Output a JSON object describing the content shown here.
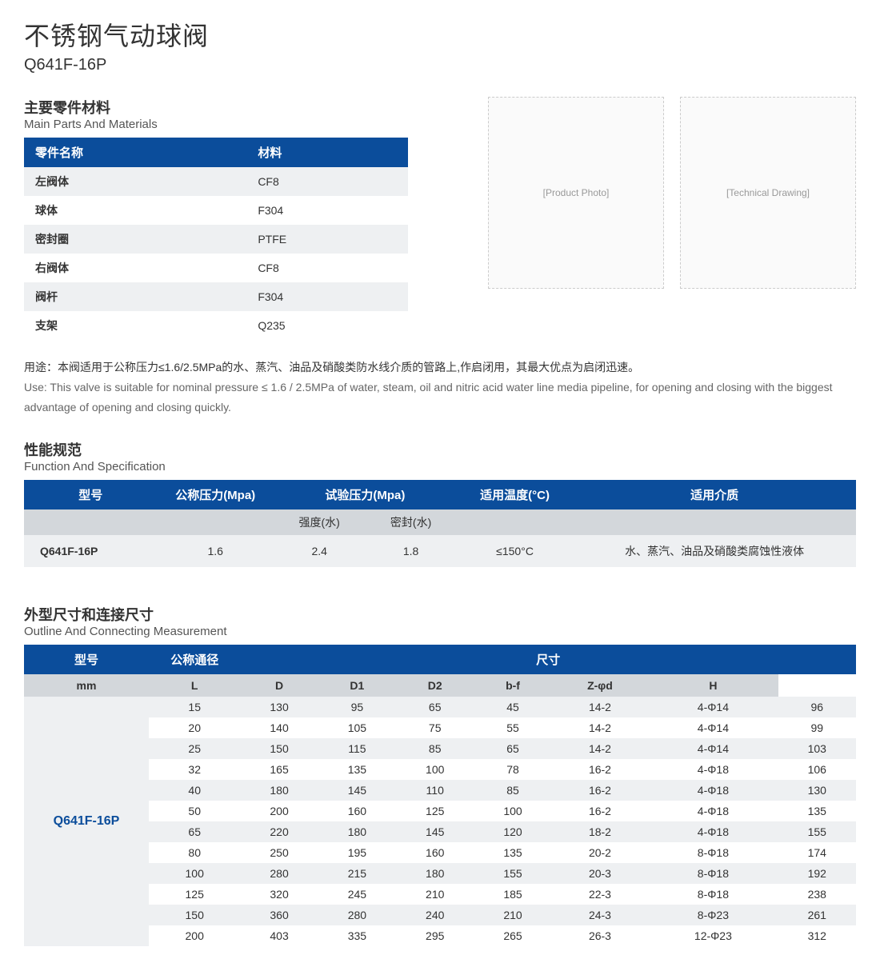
{
  "header": {
    "title_cn": "不锈钢气动球阀",
    "model": "Q641F-16P"
  },
  "materials": {
    "heading_cn": "主要零件材料",
    "heading_en": "Main Parts And Materials",
    "columns": [
      "零件名称",
      "材料"
    ],
    "rows": [
      [
        "左阀体",
        "CF8"
      ],
      [
        "球体",
        "F304"
      ],
      [
        "密封圈",
        "PTFE"
      ],
      [
        "右阀体",
        "CF8"
      ],
      [
        "阀杆",
        "F304"
      ],
      [
        "支架",
        "Q235"
      ]
    ]
  },
  "images": {
    "photo_label": "[Product Photo]",
    "diagram_label": "[Technical Drawing]"
  },
  "use": {
    "cn": "用途：本阀适用于公称压力≤1.6/2.5MPa的水、蒸汽、油品及硝酸类防水线介质的管路上,作启闭用，其最大优点为启闭迅速。",
    "en": "Use: This valve is suitable for nominal pressure ≤ 1.6 / 2.5MPa of water, steam, oil and nitric acid water line media pipeline, for opening and closing with the biggest advantage of opening and closing quickly."
  },
  "spec": {
    "heading_cn": "性能规范",
    "heading_en": "Function And Specification",
    "headers": [
      "型号",
      "公称压力(Mpa)",
      "试验压力(Mpa)",
      "适用温度(°C)",
      "适用介质"
    ],
    "sub": [
      "",
      "",
      "强度(水)",
      "密封(水)",
      "",
      ""
    ],
    "row": [
      "Q641F-16P",
      "1.6",
      "2.4",
      "1.8",
      "≤150°C",
      "水、蒸汽、油品及硝酸类腐蚀性液体"
    ]
  },
  "dimensions": {
    "heading_cn": "外型尺寸和连接尺寸",
    "heading_en": "Outline And Connecting Measurement",
    "top_headers": [
      "型号",
      "公称通径",
      "尺寸"
    ],
    "sub_headers": [
      "mm",
      "L",
      "D",
      "D1",
      "D2",
      "b-f",
      "Z-φd",
      "H"
    ],
    "model": "Q641F-16P",
    "rows": [
      [
        "15",
        "130",
        "95",
        "65",
        "45",
        "14-2",
        "4-Φ14",
        "96"
      ],
      [
        "20",
        "140",
        "105",
        "75",
        "55",
        "14-2",
        "4-Φ14",
        "99"
      ],
      [
        "25",
        "150",
        "115",
        "85",
        "65",
        "14-2",
        "4-Φ14",
        "103"
      ],
      [
        "32",
        "165",
        "135",
        "100",
        "78",
        "16-2",
        "4-Φ18",
        "106"
      ],
      [
        "40",
        "180",
        "145",
        "110",
        "85",
        "16-2",
        "4-Φ18",
        "130"
      ],
      [
        "50",
        "200",
        "160",
        "125",
        "100",
        "16-2",
        "4-Φ18",
        "135"
      ],
      [
        "65",
        "220",
        "180",
        "145",
        "120",
        "18-2",
        "4-Φ18",
        "155"
      ],
      [
        "80",
        "250",
        "195",
        "160",
        "135",
        "20-2",
        "8-Φ18",
        "174"
      ],
      [
        "100",
        "280",
        "215",
        "180",
        "155",
        "20-3",
        "8-Φ18",
        "192"
      ],
      [
        "125",
        "320",
        "245",
        "210",
        "185",
        "22-3",
        "8-Φ18",
        "238"
      ],
      [
        "150",
        "360",
        "280",
        "240",
        "210",
        "24-3",
        "8-Φ23",
        "261"
      ],
      [
        "200",
        "403",
        "335",
        "295",
        "265",
        "26-3",
        "12-Φ23",
        "312"
      ]
    ]
  },
  "colors": {
    "header_bg": "#0b4d9b",
    "row_alt": "#eef0f2",
    "sub_bg": "#d3d7db",
    "model_color": "#0b4d9b"
  }
}
